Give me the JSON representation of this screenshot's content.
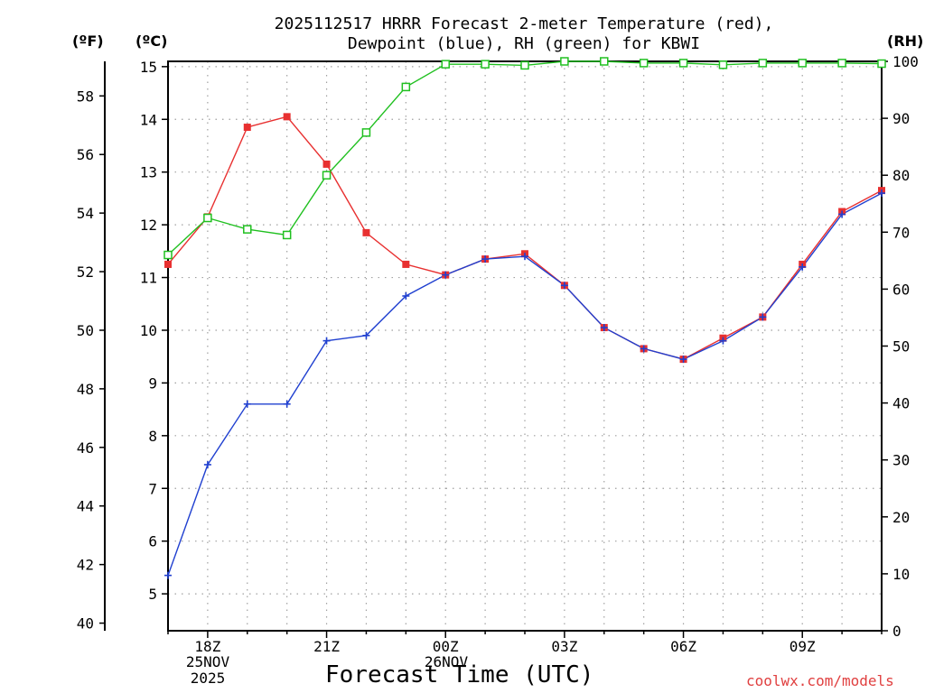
{
  "title_line1": "2025112517 HRRR Forecast 2-meter Temperature (red),",
  "title_line2": "Dewpoint (blue), RH (green) for KBWI",
  "unit_f": "(ºF)",
  "unit_c": "(ºC)",
  "unit_rh": "(RH)",
  "xlabel": "Forecast Time (UTC)",
  "credit": "coolwx.com/models",
  "date_label_1": "25NOV",
  "date_label_2": "2025",
  "date_label_3": "26NOV",
  "colors": {
    "temp": "#e83030",
    "dewpoint": "#2040d0",
    "rh": "#20c020",
    "grid": "#a0a0a0"
  },
  "chart_data": {
    "type": "line",
    "title": "2025112517 HRRR Forecast 2-meter Temperature (red), Dewpoint (blue), RH (green) for KBWI",
    "xlabel": "Forecast Time (UTC)",
    "x_hours_utc": [
      "17Z",
      "18Z",
      "19Z",
      "20Z",
      "21Z",
      "22Z",
      "23Z",
      "00Z",
      "01Z",
      "02Z",
      "03Z",
      "04Z",
      "05Z",
      "06Z",
      "07Z",
      "08Z",
      "09Z",
      "10Z",
      "11Z"
    ],
    "x_tick_labels": [
      "18Z",
      "21Z",
      "00Z",
      "03Z",
      "06Z",
      "09Z"
    ],
    "y_left_c_range": [
      4.3,
      15.1
    ],
    "y_left_c_ticks": [
      5,
      6,
      7,
      8,
      9,
      10,
      11,
      12,
      13,
      14,
      15
    ],
    "y_left_f_ticks": [
      40,
      42,
      44,
      46,
      48,
      50,
      52,
      54,
      56,
      58
    ],
    "y_right_rh_range": [
      0,
      100
    ],
    "y_right_rh_ticks": [
      0,
      10,
      20,
      30,
      40,
      50,
      60,
      70,
      80,
      90,
      100
    ],
    "series": [
      {
        "name": "Temperature (°C)",
        "marker": "filled-square",
        "values": [
          11.25,
          12.15,
          13.85,
          14.05,
          13.15,
          11.85,
          11.25,
          11.05,
          11.35,
          11.45,
          10.85,
          10.05,
          9.65,
          9.45,
          9.85,
          10.25,
          11.25,
          12.25,
          12.65
        ]
      },
      {
        "name": "Dewpoint (°C)",
        "marker": "plus",
        "values": [
          5.35,
          7.45,
          8.6,
          8.6,
          9.8,
          9.9,
          10.65,
          11.05,
          11.35,
          11.4,
          10.85,
          10.05,
          9.65,
          9.45,
          9.8,
          10.25,
          11.2,
          12.2,
          12.6
        ]
      },
      {
        "name": "RH (%)",
        "marker": "open-square",
        "values": [
          66,
          72.5,
          70.5,
          69.5,
          80,
          87.5,
          95.5,
          99.5,
          99.5,
          99.3,
          100,
          100,
          99.7,
          99.7,
          99.4,
          99.7,
          99.7,
          99.7,
          99.6
        ]
      }
    ]
  }
}
